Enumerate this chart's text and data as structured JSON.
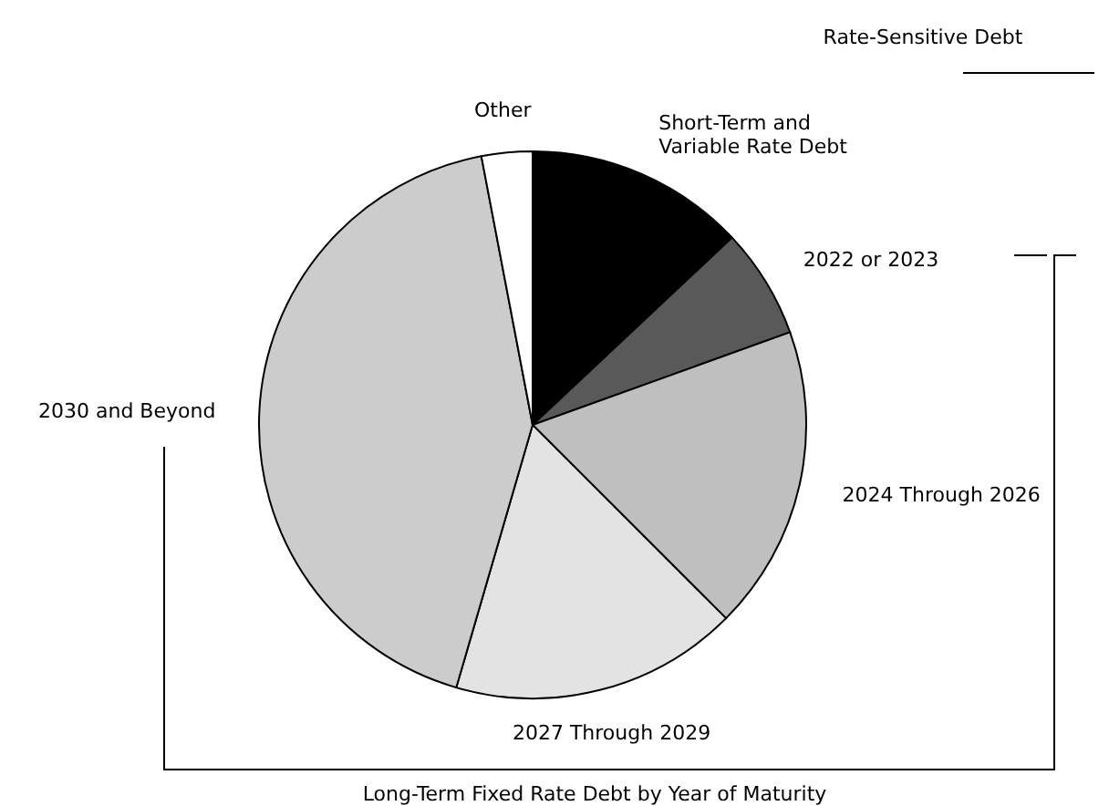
{
  "chart_data": {
    "type": "pie",
    "categories": [
      "Short-Term and Variable Rate Debt",
      "2022 or 2023",
      "2024 Through 2026",
      "2027 Through 2029",
      "2030 and Beyond",
      "Other"
    ],
    "values": [
      13,
      6.5,
      18,
      17,
      42.5,
      3
    ],
    "colors": [
      "#000000",
      "#595959",
      "#bfbfbf",
      "#e3e3e3",
      "#cccccc",
      "#ffffff"
    ],
    "annotations": [
      "Rate-Sensitive Debt",
      "Long-Term Fixed Rate Debt by Year of Maturity"
    ],
    "legend": false
  }
}
